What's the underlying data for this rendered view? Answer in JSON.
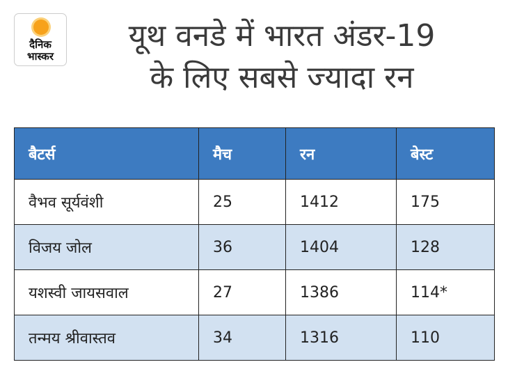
{
  "brand": {
    "line1": "दैनिक",
    "line2": "भास्कर",
    "accent": "#f7a21b"
  },
  "title": {
    "line1": "यूथ वनडे में भारत अंडर-19",
    "line2": "के लिए सबसे ज्यादा रन"
  },
  "table": {
    "headers": [
      "बैटर्स",
      "मैच",
      "रन",
      "बेस्ट"
    ],
    "rows": [
      [
        "वैभव सूर्यवंशी",
        "25",
        "1412",
        "175"
      ],
      [
        "विजय जोल",
        "36",
        "1404",
        "128"
      ],
      [
        "यशस्वी जायसवाल",
        "27",
        "1386",
        "114*"
      ],
      [
        "तन्मय श्रीवास्तव",
        "34",
        "1316",
        "110"
      ]
    ]
  },
  "colors": {
    "header": "#3d7bc1",
    "alt_row": "#d2e1f1"
  }
}
